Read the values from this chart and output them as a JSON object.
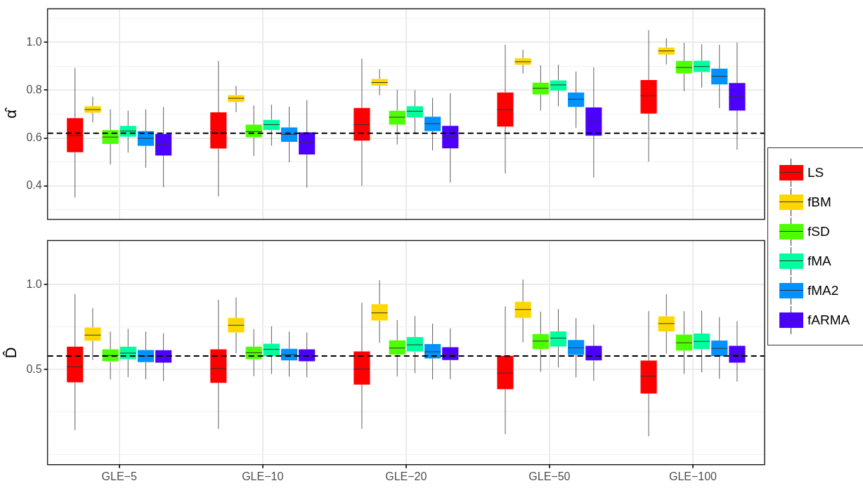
{
  "chart_data": [
    {
      "type": "box",
      "ylabel": "α̂",
      "tick_labels": "y",
      "grid": true,
      "legend": "right",
      "ylim": [
        0.26,
        1.14
      ],
      "yticks": [
        {
          "value": 0.3,
          "label": null
        },
        0.4,
        {
          "value": 0.5,
          "label": null
        },
        0.6,
        {
          "value": 0.7,
          "label": null
        },
        0.8,
        {
          "value": 0.9,
          "label": null
        },
        {
          "value": 1,
          "label": "1.0"
        },
        {
          "value": 1.1,
          "label": null
        }
      ],
      "ref_lines": [
        {
          "axis": "y",
          "value": 0.62,
          "color": "#000000",
          "line_style": "dashed"
        }
      ],
      "series": [
        {
          "name": "LS",
          "color": "#ff0000",
          "boxes": [
            {
              "low": 0.351,
              "q1": 0.541,
              "median": 0.61,
              "q3": 0.683,
              "high": 0.893
            },
            {
              "low": 0.356,
              "q1": 0.556,
              "median": 0.621,
              "q3": 0.707,
              "high": 0.922
            },
            {
              "low": 0.4,
              "q1": 0.589,
              "median": 0.656,
              "q3": 0.726,
              "high": 0.932
            },
            {
              "low": 0.452,
              "q1": 0.648,
              "median": 0.718,
              "q3": 0.79,
              "high": 0.99
            },
            {
              "low": 0.501,
              "q1": 0.702,
              "median": 0.777,
              "q3": 0.842,
              "high": 1.051
            }
          ]
        },
        {
          "name": "fBM",
          "color": "#ffd700",
          "boxes": [
            {
              "low": 0.665,
              "q1": 0.706,
              "median": 0.719,
              "q3": 0.733,
              "high": 0.773
            },
            {
              "low": 0.708,
              "q1": 0.751,
              "median": 0.766,
              "q3": 0.779,
              "high": 0.818
            },
            {
              "low": 0.779,
              "q1": 0.819,
              "median": 0.832,
              "q3": 0.847,
              "high": 0.888
            },
            {
              "low": 0.87,
              "q1": 0.906,
              "median": 0.919,
              "q3": 0.933,
              "high": 0.969
            },
            {
              "low": 0.908,
              "q1": 0.949,
              "median": 0.964,
              "q3": 0.978,
              "high": 1.017
            }
          ]
        },
        {
          "name": "fSD",
          "color": "#4dff00",
          "boxes": [
            {
              "low": 0.489,
              "q1": 0.575,
              "median": 0.604,
              "q3": 0.633,
              "high": 0.72
            },
            {
              "low": 0.525,
              "q1": 0.603,
              "median": 0.627,
              "q3": 0.656,
              "high": 0.736
            },
            {
              "low": 0.573,
              "q1": 0.656,
              "median": 0.687,
              "q3": 0.714,
              "high": 0.801
            },
            {
              "low": 0.715,
              "q1": 0.782,
              "median": 0.808,
              "q3": 0.831,
              "high": 0.904
            },
            {
              "low": 0.796,
              "q1": 0.87,
              "median": 0.895,
              "q3": 0.922,
              "high": 0.998
            }
          ]
        },
        {
          "name": "fMA",
          "color": "#00ff9f",
          "boxes": [
            {
              "low": 0.539,
              "q1": 0.605,
              "median": 0.629,
              "q3": 0.651,
              "high": 0.714
            },
            {
              "low": 0.568,
              "q1": 0.633,
              "median": 0.656,
              "q3": 0.676,
              "high": 0.739
            },
            {
              "low": 0.617,
              "q1": 0.686,
              "median": 0.712,
              "q3": 0.733,
              "high": 0.8
            },
            {
              "low": 0.733,
              "q1": 0.798,
              "median": 0.822,
              "q3": 0.841,
              "high": 0.906
            },
            {
              "low": 0.811,
              "q1": 0.876,
              "median": 0.899,
              "q3": 0.923,
              "high": 0.992
            }
          ]
        },
        {
          "name": "fMA2",
          "color": "#0092ff",
          "boxes": [
            {
              "low": 0.476,
              "q1": 0.567,
              "median": 0.599,
              "q3": 0.629,
              "high": 0.72
            },
            {
              "low": 0.498,
              "q1": 0.584,
              "median": 0.615,
              "q3": 0.644,
              "high": 0.731
            },
            {
              "low": 0.548,
              "q1": 0.629,
              "median": 0.66,
              "q3": 0.689,
              "high": 0.768
            },
            {
              "low": 0.643,
              "q1": 0.73,
              "median": 0.762,
              "q3": 0.79,
              "high": 0.878
            },
            {
              "low": 0.725,
              "q1": 0.824,
              "median": 0.858,
              "q3": 0.89,
              "high": 0.99
            }
          ]
        },
        {
          "name": "fARMA",
          "color": "#4c00ff",
          "boxes": [
            {
              "low": 0.394,
              "q1": 0.527,
              "median": 0.575,
              "q3": 0.617,
              "high": 0.73
            },
            {
              "low": 0.393,
              "q1": 0.531,
              "median": 0.583,
              "q3": 0.624,
              "high": 0.758
            },
            {
              "low": 0.414,
              "q1": 0.557,
              "median": 0.607,
              "q3": 0.651,
              "high": 0.787
            },
            {
              "low": 0.435,
              "q1": 0.61,
              "median": 0.671,
              "q3": 0.728,
              "high": 0.896
            },
            {
              "low": 0.551,
              "q1": 0.715,
              "median": 0.772,
              "q3": 0.83,
              "high": 0.999
            }
          ]
        }
      ]
    },
    {
      "type": "box",
      "ylabel": "D̂",
      "categories": [
        "GLE−5",
        "GLE−10",
        "GLE−20",
        "GLE−50",
        "GLE−100"
      ],
      "grid": true,
      "ylim": [
        -0.06,
        1.26
      ],
      "yticks": [
        {
          "value": 0,
          "label": null
        },
        {
          "value": 0.25,
          "label": null
        },
        0.5,
        {
          "value": 0.75,
          "label": null
        },
        {
          "value": 1,
          "label": "1.0"
        }
      ],
      "ref_lines": [
        {
          "axis": "y",
          "value": 0.58,
          "color": "#000000",
          "line_style": "dashed"
        }
      ],
      "series": [
        {
          "color": "#ff0000",
          "boxes": [
            {
              "low": 0.144,
              "q1": 0.425,
              "median": 0.516,
              "q3": 0.635,
              "high": 0.945
            },
            {
              "low": 0.151,
              "q1": 0.422,
              "median": 0.506,
              "q3": 0.619,
              "high": 0.911
            },
            {
              "low": 0.151,
              "q1": 0.412,
              "median": 0.503,
              "q3": 0.607,
              "high": 0.894
            },
            {
              "low": 0.12,
              "q1": 0.385,
              "median": 0.48,
              "q3": 0.581,
              "high": 0.872
            },
            {
              "low": 0.107,
              "q1": 0.359,
              "median": 0.461,
              "q3": 0.553,
              "high": 0.845
            }
          ]
        },
        {
          "color": "#ffd700",
          "boxes": [
            {
              "low": 0.557,
              "q1": 0.67,
              "median": 0.703,
              "q3": 0.748,
              "high": 0.862
            },
            {
              "low": 0.596,
              "q1": 0.719,
              "median": 0.761,
              "q3": 0.804,
              "high": 0.925
            },
            {
              "low": 0.657,
              "q1": 0.789,
              "median": 0.834,
              "q3": 0.885,
              "high": 1.026
            },
            {
              "low": 0.66,
              "q1": 0.804,
              "median": 0.854,
              "q3": 0.9,
              "high": 1.031
            },
            {
              "low": 0.594,
              "q1": 0.725,
              "median": 0.771,
              "q3": 0.814,
              "high": 0.944
            }
          ]
        },
        {
          "color": "#4dff00",
          "boxes": [
            {
              "low": 0.442,
              "q1": 0.549,
              "median": 0.583,
              "q3": 0.619,
              "high": 0.724
            },
            {
              "low": 0.461,
              "q1": 0.562,
              "median": 0.599,
              "q3": 0.635,
              "high": 0.739
            },
            {
              "low": 0.459,
              "q1": 0.588,
              "median": 0.627,
              "q3": 0.672,
              "high": 0.792
            },
            {
              "low": 0.487,
              "q1": 0.62,
              "median": 0.668,
              "q3": 0.709,
              "high": 0.842
            },
            {
              "low": 0.475,
              "q1": 0.612,
              "median": 0.658,
              "q3": 0.706,
              "high": 0.844
            }
          ]
        },
        {
          "color": "#00ff9f",
          "boxes": [
            {
              "low": 0.456,
              "q1": 0.562,
              "median": 0.597,
              "q3": 0.635,
              "high": 0.74
            },
            {
              "low": 0.474,
              "q1": 0.578,
              "median": 0.619,
              "q3": 0.653,
              "high": 0.755
            },
            {
              "low": 0.479,
              "q1": 0.607,
              "median": 0.646,
              "q3": 0.692,
              "high": 0.815
            },
            {
              "low": 0.512,
              "q1": 0.636,
              "median": 0.686,
              "q3": 0.725,
              "high": 0.857
            },
            {
              "low": 0.484,
              "q1": 0.62,
              "median": 0.666,
              "q3": 0.712,
              "high": 0.847
            }
          ]
        },
        {
          "color": "#0092ff",
          "boxes": [
            {
              "low": 0.443,
              "q1": 0.544,
              "median": 0.581,
              "q3": 0.615,
              "high": 0.724
            },
            {
              "low": 0.458,
              "q1": 0.554,
              "median": 0.588,
              "q3": 0.623,
              "high": 0.724
            },
            {
              "low": 0.442,
              "q1": 0.566,
              "median": 0.605,
              "q3": 0.65,
              "high": 0.771
            },
            {
              "low": 0.454,
              "q1": 0.586,
              "median": 0.628,
              "q3": 0.674,
              "high": 0.804
            },
            {
              "low": 0.446,
              "q1": 0.579,
              "median": 0.625,
              "q3": 0.671,
              "high": 0.809
            }
          ]
        },
        {
          "color": "#4c00ff",
          "boxes": [
            {
              "low": 0.433,
              "q1": 0.541,
              "median": 0.58,
              "q3": 0.614,
              "high": 0.714
            },
            {
              "low": 0.455,
              "q1": 0.549,
              "median": 0.583,
              "q3": 0.619,
              "high": 0.719
            },
            {
              "low": 0.444,
              "q1": 0.556,
              "median": 0.59,
              "q3": 0.632,
              "high": 0.743
            },
            {
              "low": 0.434,
              "q1": 0.554,
              "median": 0.595,
              "q3": 0.64,
              "high": 0.766
            },
            {
              "low": 0.429,
              "q1": 0.541,
              "median": 0.589,
              "q3": 0.64,
              "high": 0.785
            }
          ]
        }
      ]
    }
  ]
}
